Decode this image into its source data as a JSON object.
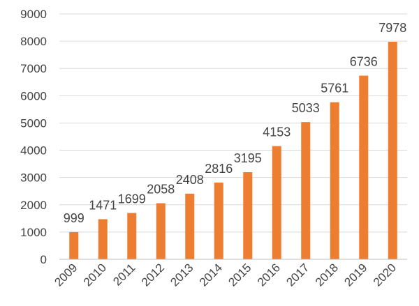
{
  "chart_data": {
    "type": "bar",
    "categories": [
      "2009",
      "2010",
      "2011",
      "2012",
      "2013",
      "2014",
      "2015",
      "2016",
      "2017",
      "2018",
      "2019",
      "2020"
    ],
    "values": [
      999,
      1471,
      1699,
      2058,
      2408,
      2816,
      3195,
      4153,
      5033,
      5761,
      6736,
      7978
    ],
    "title": "",
    "xlabel": "",
    "ylabel": "",
    "ylim": [
      0,
      9000
    ],
    "yticks": [
      "0",
      "1000",
      "2000",
      "3000",
      "4000",
      "5000",
      "6000",
      "7000",
      "8000",
      "9000"
    ],
    "grid": true,
    "legend": "none",
    "bar_color": "#ED7D31",
    "show_data_labels": true
  }
}
